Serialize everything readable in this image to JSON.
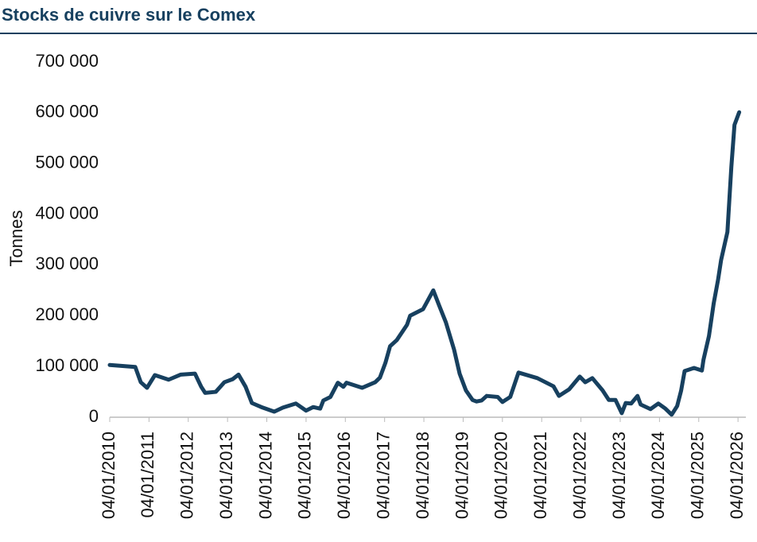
{
  "chart_data": {
    "type": "line",
    "title": "Stocks de cuivre sur le Comex",
    "y_label": "Tonnes",
    "x": [
      2010.0,
      2010.65,
      2010.79,
      2010.95,
      2011.15,
      2011.5,
      2011.81,
      2012.17,
      2012.33,
      2012.43,
      2012.7,
      2012.92,
      2013.13,
      2013.28,
      2013.46,
      2013.62,
      2013.86,
      2014.19,
      2014.41,
      2014.74,
      2015.0,
      2015.18,
      2015.36,
      2015.44,
      2015.62,
      2015.81,
      2015.95,
      2016.03,
      2016.43,
      2016.76,
      2016.88,
      2017.02,
      2017.14,
      2017.31,
      2017.57,
      2017.65,
      2017.98,
      2018.24,
      2018.38,
      2018.56,
      2018.77,
      2018.91,
      2019.07,
      2019.24,
      2019.34,
      2019.47,
      2019.6,
      2019.88,
      2020.0,
      2020.2,
      2020.41,
      2020.89,
      2021.3,
      2021.44,
      2021.7,
      2021.97,
      2022.11,
      2022.29,
      2022.55,
      2022.71,
      2022.88,
      2023.04,
      2023.14,
      2023.28,
      2023.44,
      2023.52,
      2023.77,
      2023.97,
      2024.15,
      2024.31,
      2024.45,
      2024.55,
      2024.64,
      2024.88,
      2025.08,
      2025.12,
      2025.26,
      2025.38,
      2025.49,
      2025.57,
      2025.73,
      2025.83,
      2025.91,
      2026.03
    ],
    "series": [
      {
        "name": "Stocks",
        "color": "#17405f",
        "values": [
          103000,
          99000,
          69000,
          58000,
          83000,
          74000,
          84000,
          86000,
          60000,
          48000,
          50000,
          69000,
          75000,
          84000,
          60000,
          28000,
          20000,
          11000,
          19000,
          27000,
          13000,
          20000,
          17000,
          33000,
          40000,
          68000,
          60000,
          68000,
          58000,
          69000,
          78000,
          107000,
          140000,
          152000,
          182000,
          200000,
          213000,
          250000,
          222000,
          187000,
          133000,
          86000,
          53000,
          34000,
          31000,
          33000,
          42000,
          40000,
          30000,
          40000,
          88000,
          77000,
          61000,
          42000,
          55000,
          80000,
          69000,
          77000,
          53000,
          34000,
          34000,
          8000,
          28000,
          27000,
          42000,
          25000,
          16000,
          27000,
          17000,
          5000,
          22000,
          52000,
          91000,
          97000,
          92000,
          113000,
          160000,
          224000,
          270000,
          310000,
          365000,
          493000,
          576000,
          601000
        ]
      }
    ],
    "xlim": [
      2010,
      2026.2
    ],
    "xticks": [
      {
        "value": 2010,
        "label": "04/01/2010"
      },
      {
        "value": 2011,
        "label": "04/01/2011"
      },
      {
        "value": 2012,
        "label": "04/01/2012"
      },
      {
        "value": 2013,
        "label": "04/01/2013"
      },
      {
        "value": 2014,
        "label": "04/01/2014"
      },
      {
        "value": 2015,
        "label": "04/01/2015"
      },
      {
        "value": 2016,
        "label": "04/01/2016"
      },
      {
        "value": 2017,
        "label": "04/01/2017"
      },
      {
        "value": 2018,
        "label": "04/01/2018"
      },
      {
        "value": 2019,
        "label": "04/01/2019"
      },
      {
        "value": 2020,
        "label": "04/01/2020"
      },
      {
        "value": 2021,
        "label": "04/01/2021"
      },
      {
        "value": 2022,
        "label": "04/01/2022"
      },
      {
        "value": 2023,
        "label": "04/01/2023"
      },
      {
        "value": 2024,
        "label": "04/01/2024"
      },
      {
        "value": 2025,
        "label": "04/01/2025"
      },
      {
        "value": 2026,
        "label": "04/01/2026"
      }
    ],
    "ylim": [
      0,
      700000
    ],
    "yticks": [
      0,
      {
        "value": 100000,
        "label": "100 000"
      },
      {
        "value": 200000,
        "label": "200 000"
      },
      {
        "value": 300000,
        "label": "300 000"
      },
      {
        "value": 400000,
        "label": "400 000"
      },
      {
        "value": 500000,
        "label": "500 000"
      },
      {
        "value": 600000,
        "label": "600 000"
      },
      {
        "value": 700000,
        "label": "700 000"
      }
    ]
  }
}
